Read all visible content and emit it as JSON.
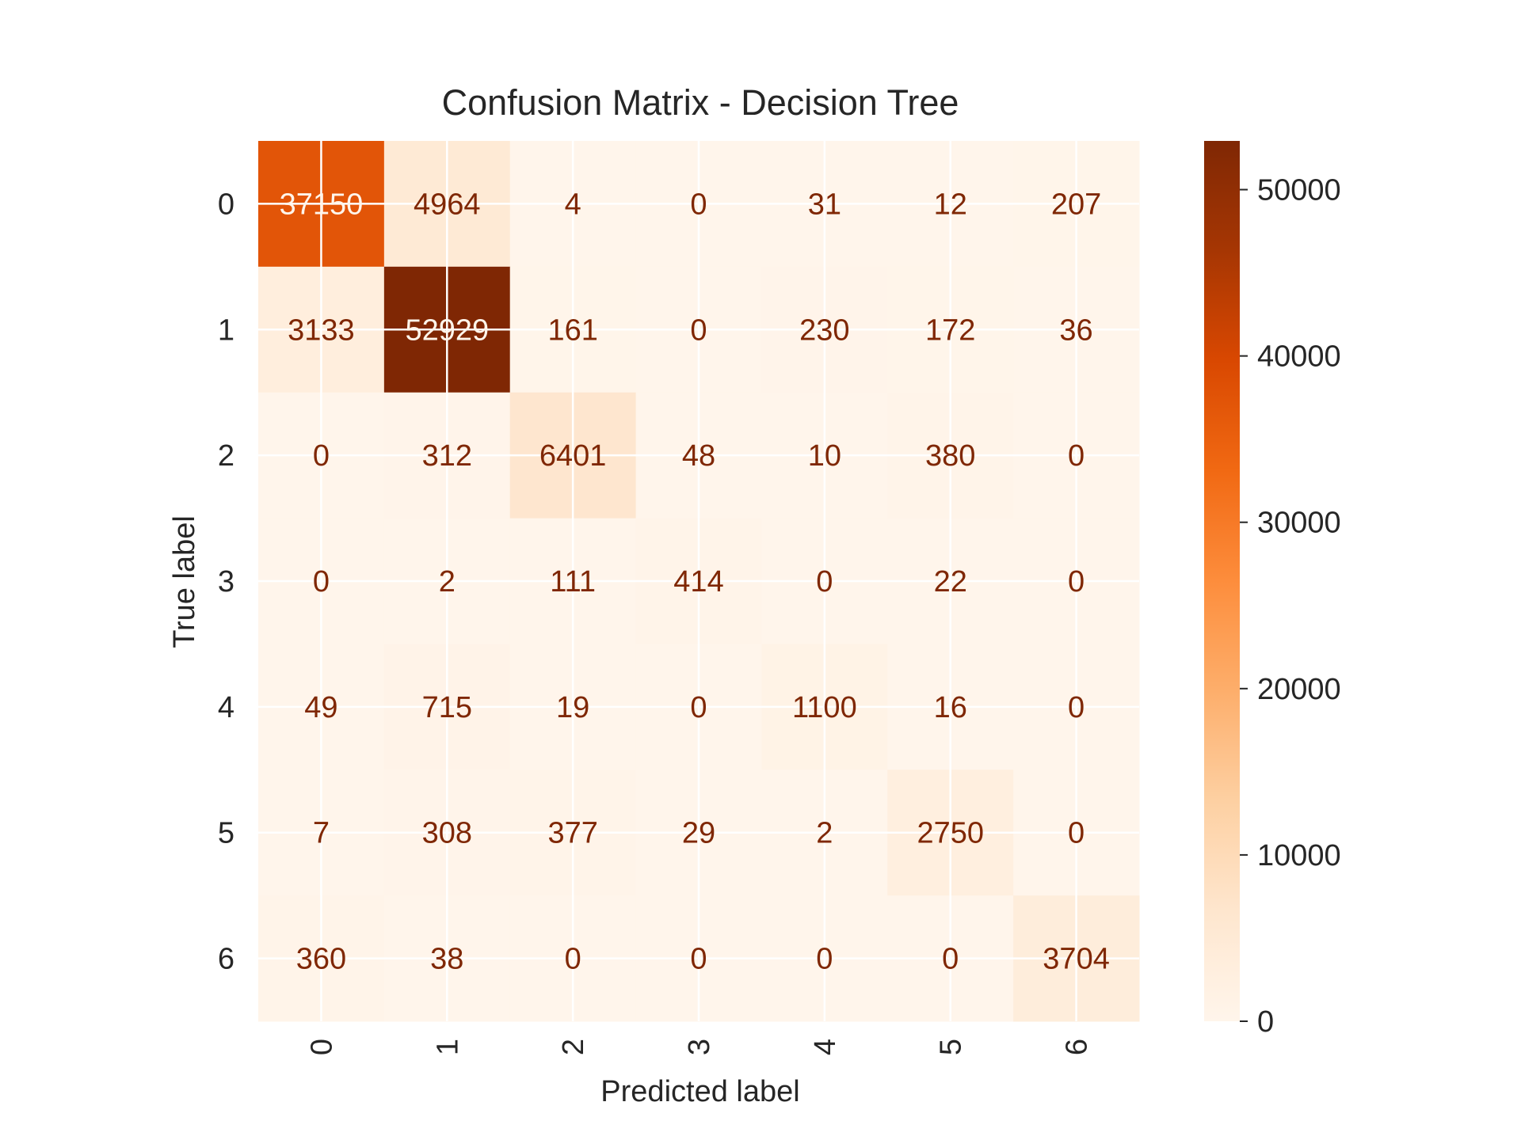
{
  "chart_data": {
    "type": "heatmap",
    "title": "Confusion Matrix - Decision Tree",
    "xlabel": "Predicted label",
    "ylabel": "True label",
    "x_categories": [
      "0",
      "1",
      "2",
      "3",
      "4",
      "5",
      "6"
    ],
    "y_categories": [
      "0",
      "1",
      "2",
      "3",
      "4",
      "5",
      "6"
    ],
    "matrix": [
      [
        37150,
        4964,
        4,
        0,
        31,
        12,
        207
      ],
      [
        3133,
        52929,
        161,
        0,
        230,
        172,
        36
      ],
      [
        0,
        312,
        6401,
        48,
        10,
        380,
        0
      ],
      [
        0,
        2,
        111,
        414,
        0,
        22,
        0
      ],
      [
        49,
        715,
        19,
        0,
        1100,
        16,
        0
      ],
      [
        7,
        308,
        377,
        29,
        2,
        2750,
        0
      ],
      [
        360,
        38,
        0,
        0,
        0,
        0,
        3704
      ]
    ],
    "colormap": "Oranges",
    "vmin": 0,
    "vmax": 52929,
    "colorbar": {
      "ticks": [
        0,
        10000,
        20000,
        30000,
        40000,
        50000
      ],
      "tick_labels": [
        "0",
        "10000",
        "20000",
        "30000",
        "40000",
        "50000"
      ]
    },
    "grid": true,
    "text_color_dark": "#7f2704",
    "text_color_light": "#fff5eb"
  }
}
